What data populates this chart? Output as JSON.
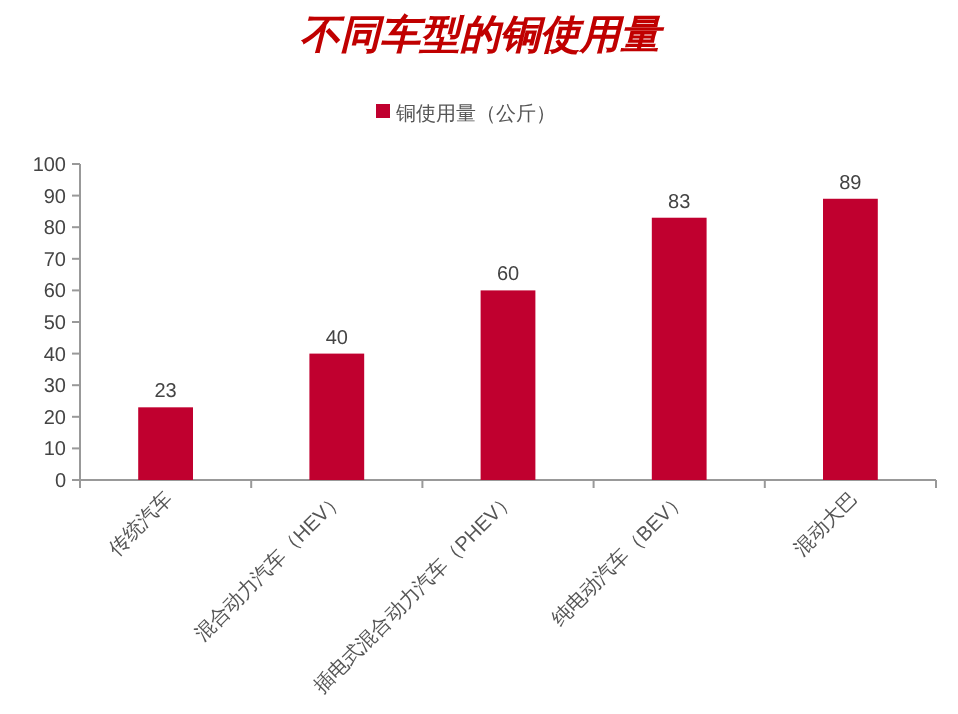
{
  "chart_data": {
    "type": "bar",
    "title": "不同车型的铜使用量",
    "categories": [
      "传统汽车",
      "混合动力汽车（HEV）",
      "插电式混合动力汽车（PHEV）",
      "纯电动汽车（BEV）",
      "混动大巴"
    ],
    "series": [
      {
        "name": "铜使用量（公斤）",
        "color": "#c0002f",
        "values": [
          23,
          40,
          60,
          83,
          89
        ]
      }
    ],
    "ylim": [
      0,
      100
    ],
    "yticks": [
      0,
      10,
      20,
      30,
      40,
      50,
      60,
      70,
      80,
      90,
      100
    ],
    "data_labels": true,
    "legend": "top",
    "grid": false
  }
}
